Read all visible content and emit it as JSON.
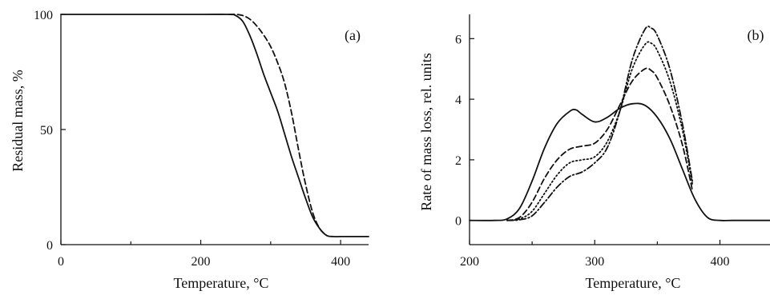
{
  "chart_data": [
    {
      "type": "line",
      "panel_label": "(a)",
      "xlabel": "Temperature, °C",
      "ylabel": "Residual mass, %",
      "xlim": [
        0,
        440
      ],
      "ylim": [
        0,
        100
      ],
      "xticks": [
        "0",
        "200",
        "400"
      ],
      "yticks": [
        "0",
        "50",
        "100"
      ],
      "grid": false,
      "series": [
        {
          "style": "solid",
          "x": [
            0,
            100,
            200,
            240,
            250,
            260,
            270,
            280,
            290,
            300,
            310,
            320,
            330,
            340,
            350,
            360,
            370,
            380,
            390,
            400,
            420,
            440
          ],
          "y": [
            100,
            100,
            100,
            100,
            99.5,
            97,
            91,
            83,
            74,
            66,
            58,
            48,
            38,
            29,
            20,
            12,
            7,
            4,
            3.5,
            3.5,
            3.5,
            3.5
          ]
        },
        {
          "style": "dashed",
          "x": [
            240,
            250,
            260,
            270,
            280,
            290,
            300,
            310,
            320,
            330,
            340,
            350,
            360,
            370,
            380
          ],
          "y": [
            100,
            100,
            99.5,
            98,
            95,
            91,
            86,
            79,
            70,
            57,
            41,
            26,
            14,
            7,
            4
          ]
        }
      ]
    },
    {
      "type": "line",
      "panel_label": "(b)",
      "xlabel": "Temperature, °C",
      "ylabel": "Rate of mass loss, rel. units",
      "xlim": [
        200,
        440
      ],
      "ylim": [
        -0.8,
        6.8
      ],
      "xticks": [
        "200",
        "300",
        "400"
      ],
      "yticks": [
        "0",
        "2",
        "4",
        "6"
      ],
      "grid": false,
      "series": [
        {
          "style": "solid",
          "x": [
            200,
            220,
            230,
            240,
            250,
            260,
            270,
            280,
            285,
            290,
            300,
            310,
            320,
            330,
            340,
            350,
            360,
            370,
            380,
            390,
            400,
            410,
            440
          ],
          "y": [
            0,
            0,
            0.05,
            0.4,
            1.3,
            2.4,
            3.2,
            3.6,
            3.65,
            3.5,
            3.25,
            3.4,
            3.7,
            3.85,
            3.8,
            3.4,
            2.7,
            1.7,
            0.7,
            0.1,
            0,
            0,
            0
          ]
        },
        {
          "style": "dashed",
          "x": [
            230,
            240,
            250,
            260,
            270,
            280,
            290,
            300,
            310,
            320,
            330,
            340,
            345,
            350,
            360,
            370,
            378
          ],
          "y": [
            0,
            0.1,
            0.6,
            1.4,
            2.0,
            2.35,
            2.45,
            2.55,
            3.0,
            3.8,
            4.6,
            5.0,
            4.95,
            4.7,
            3.8,
            2.5,
            1.0
          ]
        },
        {
          "style": "dotted",
          "x": [
            230,
            240,
            250,
            260,
            270,
            280,
            290,
            300,
            310,
            320,
            330,
            340,
            345,
            350,
            360,
            370,
            378
          ],
          "y": [
            0,
            0.05,
            0.3,
            0.9,
            1.5,
            1.9,
            2.0,
            2.1,
            2.6,
            3.6,
            5.0,
            5.8,
            5.85,
            5.6,
            4.6,
            3.0,
            1.2
          ]
        },
        {
          "style": "dash-dot",
          "x": [
            230,
            240,
            250,
            260,
            270,
            280,
            290,
            300,
            310,
            320,
            330,
            340,
            345,
            350,
            360,
            370,
            378
          ],
          "y": [
            0,
            0.02,
            0.15,
            0.6,
            1.1,
            1.45,
            1.6,
            1.9,
            2.4,
            3.6,
            5.3,
            6.3,
            6.35,
            6.1,
            5.0,
            3.2,
            1.3
          ]
        }
      ]
    }
  ]
}
